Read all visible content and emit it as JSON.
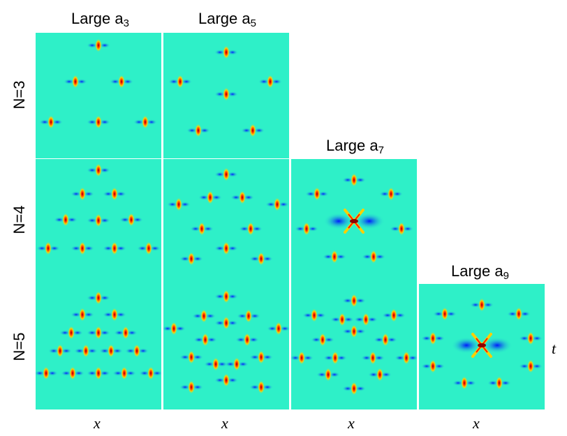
{
  "column_titles": [
    {
      "label": "Large a",
      "sub": "3"
    },
    {
      "label": "Large a",
      "sub": "5"
    },
    {
      "label": "Large a",
      "sub": "7"
    },
    {
      "label": "Large a",
      "sub": "9"
    }
  ],
  "row_labels": [
    "N=3",
    "N=4",
    "N=5"
  ],
  "x_axis_label": "x",
  "t_axis_label": "t",
  "colors": {
    "background": "#2ef0c8",
    "peak_core": "#8b0000",
    "peak_mid": "#ff2000",
    "peak_outer": "#ffd000",
    "trough": "#0018ff"
  }
}
